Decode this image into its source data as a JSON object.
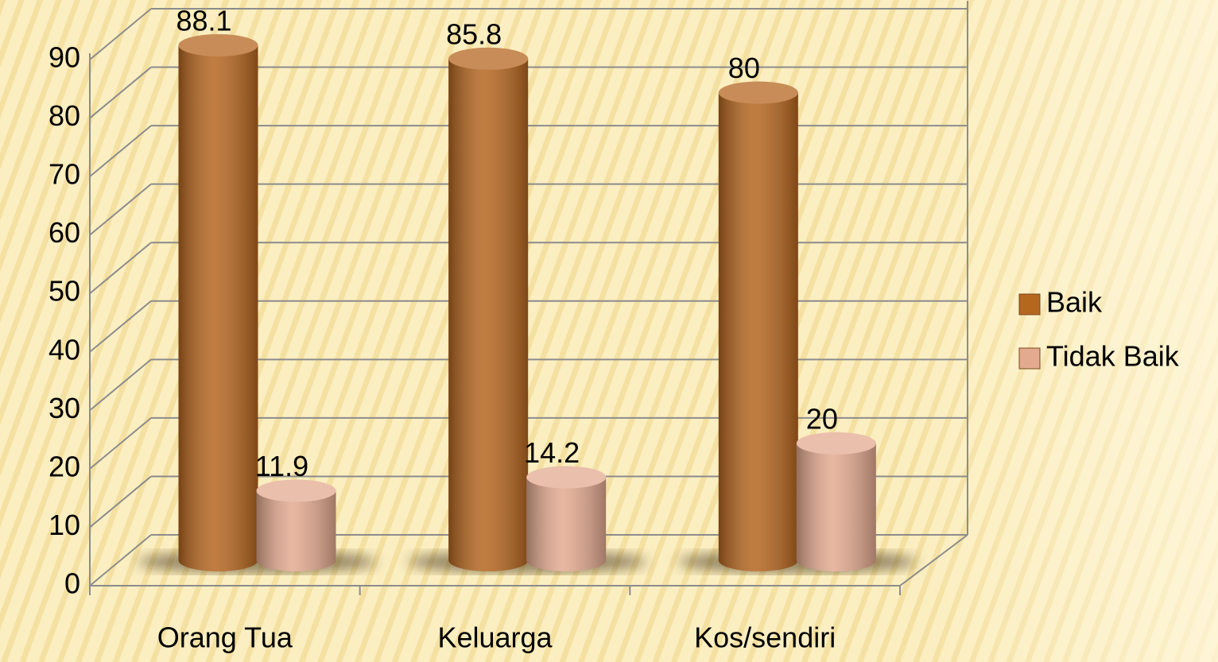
{
  "chart_data": {
    "type": "bar3d",
    "categories": [
      "Orang Tua",
      "Keluarga",
      "Kos/sendiri"
    ],
    "series": [
      {
        "name": "Baik",
        "color": "#b5661f",
        "values": [
          88.1,
          85.8,
          80
        ]
      },
      {
        "name": "Tidak Baik",
        "color": "#e3aa90",
        "values": [
          11.9,
          14.2,
          20
        ]
      }
    ],
    "ylim": [
      0,
      90
    ],
    "yticks": [
      0,
      10,
      20,
      30,
      40,
      50,
      60,
      70,
      80,
      90
    ],
    "grid": true,
    "legend": "right"
  }
}
